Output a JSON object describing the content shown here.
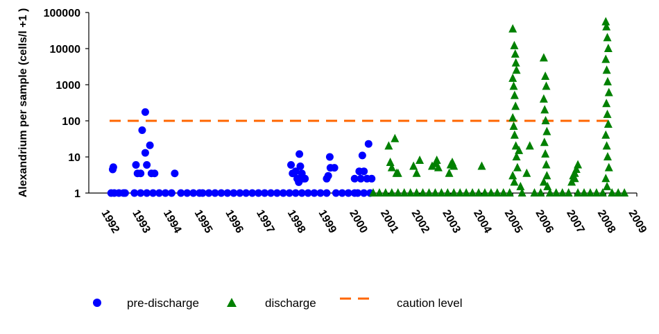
{
  "chart_data": {
    "type": "scatter",
    "ylabel": "Alexandrium per sample (cells/l +1 )",
    "xlabel": "",
    "title": "",
    "yscale": "log",
    "ylim": [
      1,
      100000
    ],
    "xlim": [
      1992,
      2009
    ],
    "y_ticks": [
      "1",
      "10",
      "100",
      "1000",
      "10000",
      "100000"
    ],
    "x_ticks": [
      "1992",
      "1993",
      "1994",
      "1995",
      "1996",
      "1997",
      "1998",
      "1999",
      "2000",
      "2001",
      "2002",
      "2003",
      "2004",
      "2005",
      "2006",
      "2007",
      "2008",
      "2009"
    ],
    "grid": false,
    "legend_position": "bottom",
    "colors": {
      "pre_discharge": "#0000ff",
      "discharge": "#008000",
      "caution": "#ff6600"
    },
    "series": [
      {
        "name": "pre-discharge",
        "marker": "circle",
        "points": [
          [
            1992.05,
            1
          ],
          [
            1992.15,
            1
          ],
          [
            1992.3,
            1
          ],
          [
            1992.45,
            1
          ],
          [
            1992.5,
            1
          ],
          [
            1992.1,
            4.5
          ],
          [
            1992.12,
            5.2
          ],
          [
            1992.85,
            6
          ],
          [
            1992.9,
            3.5
          ],
          [
            1993.0,
            3.5
          ],
          [
            1993.05,
            55
          ],
          [
            1993.15,
            175
          ],
          [
            1993.15,
            13
          ],
          [
            1993.2,
            6
          ],
          [
            1993.3,
            21
          ],
          [
            1993.35,
            3.5
          ],
          [
            1993.45,
            3.5
          ],
          [
            1992.8,
            1
          ],
          [
            1993.0,
            1
          ],
          [
            1993.2,
            1
          ],
          [
            1993.4,
            1
          ],
          [
            1993.6,
            1
          ],
          [
            1993.8,
            1
          ],
          [
            1994.0,
            1
          ],
          [
            1994.1,
            3.5
          ],
          [
            1994.3,
            1
          ],
          [
            1994.5,
            1
          ],
          [
            1994.7,
            1
          ],
          [
            1994.9,
            1
          ],
          [
            1995.0,
            1
          ],
          [
            1995.2,
            1
          ],
          [
            1995.4,
            1
          ],
          [
            1995.6,
            1
          ],
          [
            1995.8,
            1
          ],
          [
            1996.0,
            1
          ],
          [
            1996.2,
            1
          ],
          [
            1996.4,
            1
          ],
          [
            1996.6,
            1
          ],
          [
            1996.8,
            1
          ],
          [
            1997.0,
            1
          ],
          [
            1997.2,
            1
          ],
          [
            1997.4,
            1
          ],
          [
            1997.6,
            1
          ],
          [
            1997.8,
            1
          ],
          [
            1997.85,
            6
          ],
          [
            1997.9,
            3.5
          ],
          [
            1998.0,
            4
          ],
          [
            1998.05,
            2.5
          ],
          [
            1998.1,
            2
          ],
          [
            1998.12,
            12
          ],
          [
            1998.15,
            5.5
          ],
          [
            1998.2,
            3.5
          ],
          [
            1998.25,
            2.5
          ],
          [
            1998.3,
            2.5
          ],
          [
            1998.0,
            1
          ],
          [
            1998.2,
            1
          ],
          [
            1998.4,
            1
          ],
          [
            1998.6,
            1
          ],
          [
            1998.8,
            1
          ],
          [
            1999.0,
            2.5
          ],
          [
            1999.05,
            3
          ],
          [
            1999.1,
            10
          ],
          [
            1999.12,
            5
          ],
          [
            1999.25,
            5
          ],
          [
            1999.0,
            1
          ],
          [
            1999.3,
            1
          ],
          [
            1999.5,
            1
          ],
          [
            1999.7,
            1
          ],
          [
            1999.9,
            1
          ],
          [
            1999.9,
            2.5
          ],
          [
            2000.05,
            4
          ],
          [
            2000.1,
            2.5
          ],
          [
            2000.15,
            11
          ],
          [
            2000.2,
            4
          ],
          [
            2000.3,
            2.5
          ],
          [
            2000.35,
            23
          ],
          [
            2000.45,
            2.5
          ],
          [
            2000.0,
            1
          ],
          [
            2000.2,
            1
          ],
          [
            2000.4,
            1
          ]
        ]
      },
      {
        "name": "discharge",
        "marker": "triangle",
        "points": [
          [
            2000.5,
            1
          ],
          [
            2000.7,
            1
          ],
          [
            2000.9,
            1
          ],
          [
            2001.1,
            1
          ],
          [
            2001.3,
            1
          ],
          [
            2001.5,
            1
          ],
          [
            2001.7,
            1
          ],
          [
            2001.9,
            1
          ],
          [
            2001.0,
            20
          ],
          [
            2001.05,
            7
          ],
          [
            2001.1,
            5
          ],
          [
            2001.2,
            32
          ],
          [
            2001.25,
            3.5
          ],
          [
            2001.3,
            3.5
          ],
          [
            2001.8,
            5.5
          ],
          [
            2001.9,
            3.5
          ],
          [
            2002.0,
            8
          ],
          [
            2002.1,
            1
          ],
          [
            2002.3,
            1
          ],
          [
            2002.5,
            1
          ],
          [
            2002.7,
            1
          ],
          [
            2002.9,
            1
          ],
          [
            2002.4,
            5.5
          ],
          [
            2002.5,
            6.5
          ],
          [
            2002.55,
            8
          ],
          [
            2002.6,
            5
          ],
          [
            2002.95,
            3.5
          ],
          [
            2003.0,
            6
          ],
          [
            2003.05,
            7
          ],
          [
            2003.1,
            5.5
          ],
          [
            2003.1,
            1
          ],
          [
            2003.3,
            1
          ],
          [
            2003.5,
            1
          ],
          [
            2003.7,
            1
          ],
          [
            2003.9,
            1
          ],
          [
            2004.1,
            1
          ],
          [
            2004.3,
            1
          ],
          [
            2004.5,
            1
          ],
          [
            2004.7,
            1
          ],
          [
            2004.9,
            1
          ],
          [
            2004.0,
            5.5
          ],
          [
            2005.0,
            35000
          ],
          [
            2005.05,
            12000
          ],
          [
            2005.08,
            7000
          ],
          [
            2005.1,
            4000
          ],
          [
            2005.12,
            2500
          ],
          [
            2005.0,
            1500
          ],
          [
            2005.03,
            900
          ],
          [
            2005.06,
            500
          ],
          [
            2005.09,
            250
          ],
          [
            2005.0,
            120
          ],
          [
            2005.03,
            70
          ],
          [
            2005.06,
            40
          ],
          [
            2005.1,
            20
          ],
          [
            2005.12,
            10
          ],
          [
            2005.15,
            5
          ],
          [
            2005.0,
            3
          ],
          [
            2005.05,
            2
          ],
          [
            2005.2,
            15
          ],
          [
            2005.25,
            1.5
          ],
          [
            2005.3,
            1
          ],
          [
            2005.45,
            3.5
          ],
          [
            2005.55,
            20
          ],
          [
            2005.7,
            1
          ],
          [
            2005.9,
            1
          ],
          [
            2006.0,
            5500
          ],
          [
            2006.05,
            1700
          ],
          [
            2006.08,
            900
          ],
          [
            2006.0,
            400
          ],
          [
            2006.03,
            200
          ],
          [
            2006.06,
            100
          ],
          [
            2006.1,
            50
          ],
          [
            2006.02,
            25
          ],
          [
            2006.05,
            12
          ],
          [
            2006.08,
            6
          ],
          [
            2006.1,
            3
          ],
          [
            2006.0,
            2
          ],
          [
            2006.12,
            1.5
          ],
          [
            2006.2,
            1
          ],
          [
            2006.4,
            1
          ],
          [
            2006.6,
            1
          ],
          [
            2006.8,
            1
          ],
          [
            2006.9,
            2
          ],
          [
            2006.95,
            3
          ],
          [
            2007.0,
            3.5
          ],
          [
            2007.05,
            4.5
          ],
          [
            2007.1,
            6
          ],
          [
            2007.0,
            2.5
          ],
          [
            2007.1,
            1
          ],
          [
            2007.3,
            1
          ],
          [
            2007.5,
            1
          ],
          [
            2007.7,
            1
          ],
          [
            2007.9,
            1
          ],
          [
            2008.0,
            55000
          ],
          [
            2008.02,
            40000
          ],
          [
            2008.05,
            20000
          ],
          [
            2008.08,
            10000
          ],
          [
            2008.0,
            5000
          ],
          [
            2008.03,
            2500
          ],
          [
            2008.06,
            1200
          ],
          [
            2008.1,
            600
          ],
          [
            2008.02,
            300
          ],
          [
            2008.05,
            150
          ],
          [
            2008.08,
            80
          ],
          [
            2008.0,
            40
          ],
          [
            2008.03,
            20
          ],
          [
            2008.06,
            10
          ],
          [
            2008.1,
            5
          ],
          [
            2008.0,
            2.5
          ],
          [
            2008.04,
            1.5
          ],
          [
            2008.2,
            1
          ],
          [
            2008.4,
            1
          ],
          [
            2008.6,
            1
          ]
        ]
      },
      {
        "name": "caution level",
        "marker": "dashed-line",
        "value": 100
      }
    ]
  }
}
